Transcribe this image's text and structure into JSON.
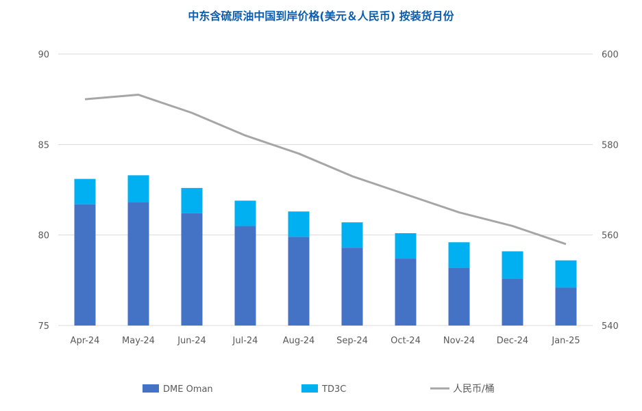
{
  "chart_data": {
    "type": "bar",
    "title": "中东含硫原油中国到岸价格(美元＆人民币) 按装货月份",
    "categories": [
      "Apr-24",
      "May-24",
      "Jun-24",
      "Jul-24",
      "Aug-24",
      "Sep-24",
      "Oct-24",
      "Nov-24",
      "Dec-24",
      "Jan-25"
    ],
    "series": [
      {
        "name": "DME Oman",
        "kind": "bar",
        "stacked": true,
        "axis": "left",
        "color": "#4472c4",
        "values": [
          81.7,
          81.8,
          81.2,
          80.5,
          79.9,
          79.3,
          78.7,
          78.2,
          77.6,
          77.1
        ]
      },
      {
        "name": "TD3C",
        "kind": "bar",
        "stacked": true,
        "axis": "left",
        "color": "#00b0f0",
        "values": [
          1.4,
          1.5,
          1.4,
          1.4,
          1.4,
          1.4,
          1.4,
          1.4,
          1.5,
          1.5
        ]
      },
      {
        "name": "人民币/桶",
        "kind": "line",
        "axis": "right",
        "color": "#a6a6a6",
        "values": [
          590,
          591,
          587,
          582,
          578,
          573,
          569,
          565,
          562,
          558
        ]
      }
    ],
    "y_left": {
      "min": 75,
      "max": 90,
      "ticks": [
        75,
        80,
        85,
        90
      ]
    },
    "y_right": {
      "min": 540,
      "max": 600,
      "ticks": [
        540,
        560,
        580,
        600
      ]
    },
    "grid": true,
    "legend_position": "bottom"
  }
}
